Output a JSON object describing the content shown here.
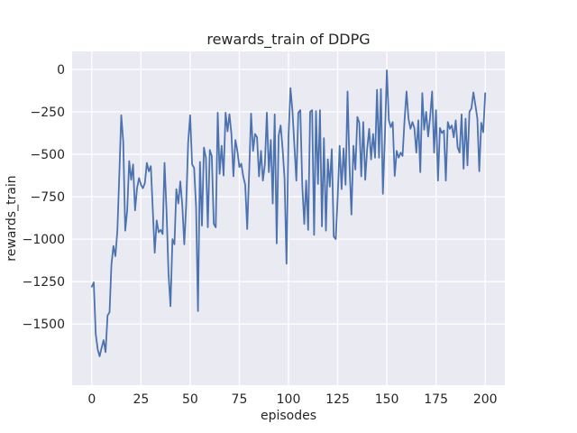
{
  "figure": {
    "background": "#ffffff"
  },
  "chart_data": {
    "type": "line",
    "title": "rewards_train of DDPG",
    "xlabel": "episodes",
    "ylabel": "rewards_train",
    "x_ticks": [
      0,
      25,
      50,
      75,
      100,
      125,
      150,
      175,
      200
    ],
    "y_ticks": [
      0,
      -250,
      -500,
      -750,
      -1000,
      -1250,
      -1500
    ],
    "xlim": [
      -10,
      210
    ],
    "ylim": [
      -1860,
      106
    ],
    "grid": true,
    "legend": "none",
    "plot_bg_color": "#eaeaf2",
    "grid_color": "#ffffff",
    "text_color": "#262626",
    "series": [
      {
        "name": "rewards_train",
        "color": "#4c72b0",
        "x_start": 0,
        "x_step": 1,
        "y": [
          -1280,
          -1255,
          -1560,
          -1650,
          -1690,
          -1640,
          -1595,
          -1665,
          -1450,
          -1430,
          -1150,
          -1040,
          -1100,
          -950,
          -610,
          -270,
          -425,
          -950,
          -830,
          -540,
          -650,
          -560,
          -830,
          -700,
          -640,
          -680,
          -700,
          -670,
          -550,
          -600,
          -570,
          -830,
          -1080,
          -890,
          -960,
          -945,
          -970,
          -550,
          -830,
          -1200,
          -1395,
          -1000,
          -1030,
          -705,
          -790,
          -660,
          -800,
          -1030,
          -800,
          -430,
          -270,
          -560,
          -580,
          -810,
          -1424,
          -545,
          -920,
          -460,
          -520,
          -930,
          -475,
          -510,
          -910,
          -930,
          -255,
          -615,
          -450,
          -625,
          -255,
          -365,
          -264,
          -380,
          -630,
          -415,
          -480,
          -575,
          -555,
          -630,
          -680,
          -940,
          -600,
          -260,
          -480,
          -380,
          -400,
          -630,
          -480,
          -655,
          -560,
          -255,
          -605,
          -415,
          -790,
          -265,
          -1025,
          -390,
          -330,
          -470,
          -640,
          -1145,
          -400,
          -110,
          -245,
          -445,
          -655,
          -255,
          -240,
          -685,
          -910,
          -655,
          -945,
          -250,
          -240,
          -975,
          -245,
          -675,
          -240,
          -925,
          -405,
          -950,
          -530,
          -690,
          -470,
          -985,
          -1000,
          -760,
          -450,
          -705,
          -465,
          -680,
          -130,
          -555,
          -855,
          -450,
          -590,
          -280,
          -315,
          -630,
          -310,
          -650,
          -465,
          -350,
          -530,
          -380,
          -520,
          -120,
          -520,
          -115,
          -733,
          -400,
          -5,
          -300,
          -340,
          -310,
          -627,
          -480,
          -520,
          -490,
          -510,
          -300,
          -130,
          -290,
          -350,
          -310,
          -345,
          -490,
          -300,
          -605,
          -140,
          -355,
          -250,
          -395,
          -280,
          -130,
          -490,
          -240,
          -655,
          -345,
          -375,
          -360,
          -655,
          -310,
          -350,
          -330,
          -400,
          -300,
          -460,
          -490,
          -265,
          -585,
          -290,
          -565,
          -250,
          -230,
          -135,
          -210,
          -290,
          -600,
          -315,
          -370,
          -140
        ]
      }
    ]
  }
}
